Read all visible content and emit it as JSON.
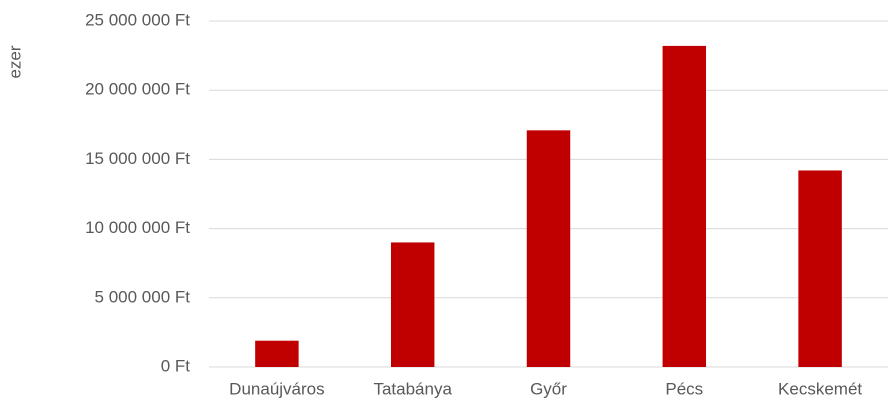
{
  "chart_data": {
    "type": "bar",
    "y_label": "ezer",
    "categories": [
      "Dunaújváros",
      "Tatabánya",
      "Győr",
      "Pécs",
      "Kecskemét"
    ],
    "values": [
      1900000,
      9000000,
      17100000,
      23200000,
      14200000
    ],
    "color": "#c00000",
    "ylim": [
      0,
      25000000
    ],
    "yticks": [
      {
        "value": 0,
        "label": "0 Ft"
      },
      {
        "value": 5000000,
        "label": "5 000 000 Ft"
      },
      {
        "value": 10000000,
        "label": "10 000 000 Ft"
      },
      {
        "value": 15000000,
        "label": "15 000 000 Ft"
      },
      {
        "value": 20000000,
        "label": "20 000 000 Ft"
      },
      {
        "value": 25000000,
        "label": "25 000 000 Ft"
      }
    ],
    "grid": true
  }
}
